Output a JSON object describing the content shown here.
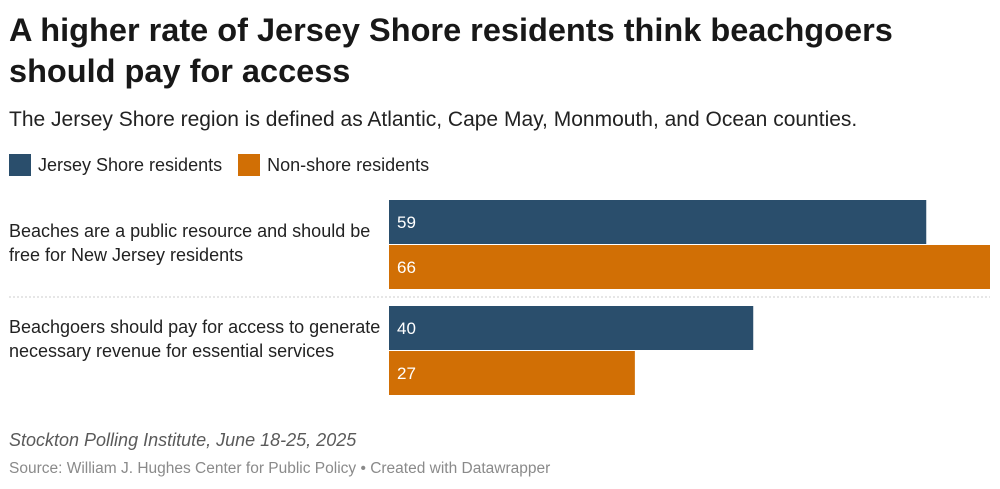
{
  "title": "A higher rate of Jersey Shore residents think beachgoers should pay for access",
  "subtitle": "The Jersey Shore region is defined as Atlantic, Cape May, Monmouth, and Ocean counties.",
  "legend": [
    {
      "label": "Jersey Shore residents",
      "color": "#2a4e6c"
    },
    {
      "label": "Non-shore residents",
      "color": "#d16f05"
    }
  ],
  "chart_data": {
    "type": "bar",
    "orientation": "horizontal",
    "title": "A higher rate of Jersey Shore residents think beachgoers should pay for access",
    "subtitle": "The Jersey Shore region is defined as Atlantic, Cape May, Monmouth, and Ocean counties.",
    "categories": [
      "Beaches are a public resource and should be free for New Jersey residents",
      "Beachgoers should pay for access to generate necessary revenue for essential services"
    ],
    "series": [
      {
        "name": "Jersey Shore residents",
        "color": "#2a4e6c",
        "values": [
          59,
          40
        ]
      },
      {
        "name": "Non-shore residents",
        "color": "#d16f05",
        "values": [
          66,
          27
        ]
      }
    ],
    "xlim": [
      0,
      66
    ],
    "grid": false,
    "legend_position": "top-left",
    "data_labels": true
  },
  "footer": {
    "note": "Stockton Polling Institute, June 18-25, 2025",
    "source": "Source: William J. Hughes Center for Public Policy • Created with Datawrapper"
  }
}
